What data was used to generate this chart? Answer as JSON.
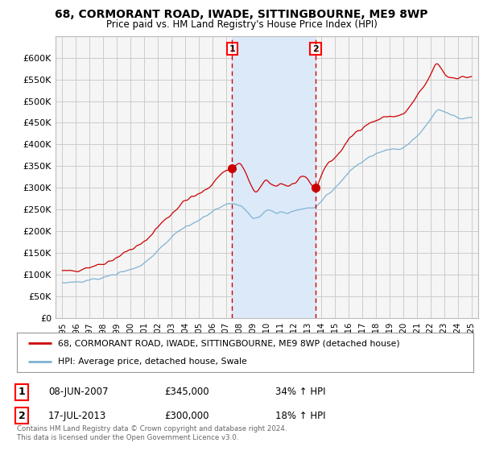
{
  "title": "68, CORMORANT ROAD, IWADE, SITTINGBOURNE, ME9 8WP",
  "subtitle": "Price paid vs. HM Land Registry's House Price Index (HPI)",
  "ylim": [
    0,
    650000
  ],
  "yticks": [
    0,
    50000,
    100000,
    150000,
    200000,
    250000,
    300000,
    350000,
    400000,
    450000,
    500000,
    550000,
    600000
  ],
  "ytick_labels": [
    "£0",
    "£50K",
    "£100K",
    "£150K",
    "£200K",
    "£250K",
    "£300K",
    "£350K",
    "£400K",
    "£450K",
    "£500K",
    "£550K",
    "£600K"
  ],
  "background_color": "#ffffff",
  "plot_background": "#f5f5f5",
  "grid_color": "#cccccc",
  "shade_color": "#dce9f8",
  "legend_entries": [
    "68, CORMORANT ROAD, IWADE, SITTINGBOURNE, ME9 8WP (detached house)",
    "HPI: Average price, detached house, Swale"
  ],
  "line_red": "#cc0000",
  "line_blue": "#7fb3d3",
  "sale1_x": 2007.45,
  "sale2_x": 2013.58,
  "sale1_y": 345000,
  "sale2_y": 300000,
  "sale1": {
    "date": "08-JUN-2007",
    "price": "£345,000",
    "change": "34% ↑ HPI"
  },
  "sale2": {
    "date": "17-JUL-2013",
    "price": "£300,000",
    "change": "18% ↑ HPI"
  },
  "footer": "Contains HM Land Registry data © Crown copyright and database right 2024.\nThis data is licensed under the Open Government Licence v3.0.",
  "xlim": [
    1994.5,
    2025.5
  ],
  "xticks": [
    1995,
    1996,
    1997,
    1998,
    1999,
    2000,
    2001,
    2002,
    2003,
    2004,
    2005,
    2006,
    2007,
    2008,
    2009,
    2010,
    2011,
    2012,
    2013,
    2014,
    2015,
    2016,
    2017,
    2018,
    2019,
    2020,
    2021,
    2022,
    2023,
    2024,
    2025
  ]
}
